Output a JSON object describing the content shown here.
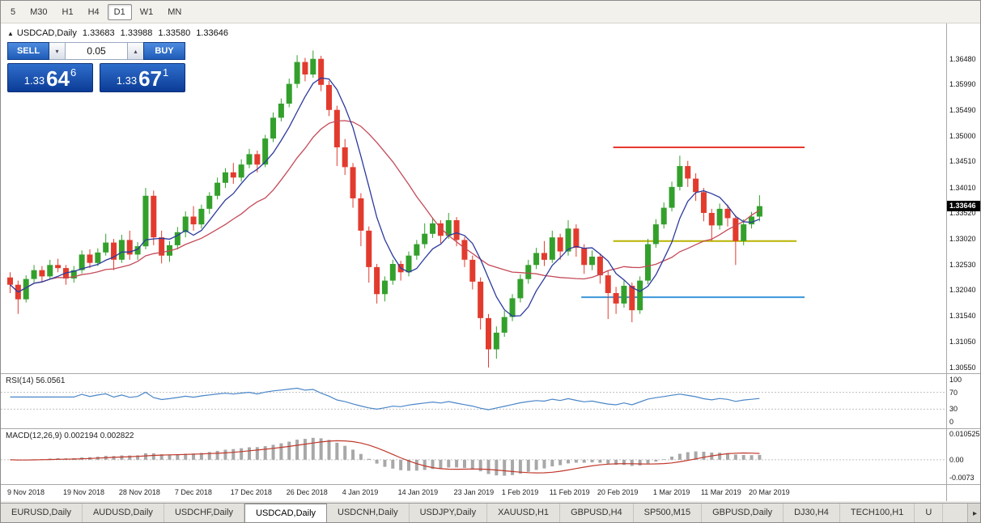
{
  "toolbar": {
    "timeframes": [
      {
        "label": "5",
        "active": false
      },
      {
        "label": "M30",
        "active": false
      },
      {
        "label": "H1",
        "active": false
      },
      {
        "label": "H4",
        "active": false
      },
      {
        "label": "D1",
        "active": true
      },
      {
        "label": "W1",
        "active": false
      },
      {
        "label": "MN",
        "active": false
      }
    ]
  },
  "quote": {
    "symbol": "USDCAD,Daily",
    "open": "1.33683",
    "high": "1.33988",
    "low": "1.33580",
    "close": "1.33646"
  },
  "trade_panel": {
    "sell_label": "SELL",
    "buy_label": "BUY",
    "lot_value": "0.05",
    "sell_price": {
      "prefix": "1.33",
      "big": "64",
      "sup": "6"
    },
    "buy_price": {
      "prefix": "1.33",
      "big": "67",
      "sup": "1"
    }
  },
  "price_axis": {
    "labels": [
      "1.36480",
      "1.35990",
      "1.35490",
      "1.35000",
      "1.34510",
      "1.34010",
      "1.33520",
      "1.33020",
      "1.32530",
      "1.32040",
      "1.31540",
      "1.31050",
      "1.30550"
    ],
    "badge": "1.33646"
  },
  "rsi": {
    "title": "RSI(14) 56.0561",
    "axis": [
      "100",
      "70",
      "30",
      "0"
    ]
  },
  "macd": {
    "title": "MACD(12,26,9) 0.002194 0.002822",
    "axis": [
      "0.010525",
      "0.00",
      "-0.0073"
    ]
  },
  "dates": [
    {
      "i": 0,
      "label": "9 Nov 2018"
    },
    {
      "i": 7,
      "label": "19 Nov 2018"
    },
    {
      "i": 14,
      "label": "28 Nov 2018"
    },
    {
      "i": 21,
      "label": "7 Dec 2018"
    },
    {
      "i": 28,
      "label": "17 Dec 2018"
    },
    {
      "i": 35,
      "label": "26 Dec 2018"
    },
    {
      "i": 42,
      "label": "4 Jan 2019"
    },
    {
      "i": 49,
      "label": "14 Jan 2019"
    },
    {
      "i": 56,
      "label": "23 Jan 2019"
    },
    {
      "i": 62,
      "label": "1 Feb 2019"
    },
    {
      "i": 68,
      "label": "11 Feb 2019"
    },
    {
      "i": 74,
      "label": "20 Feb 2019"
    },
    {
      "i": 81,
      "label": "1 Mar 2019"
    },
    {
      "i": 87,
      "label": "11 Mar 2019"
    },
    {
      "i": 93,
      "label": "20 Mar 2019"
    }
  ],
  "tabs": [
    {
      "label": "EURUSD,Daily",
      "active": false
    },
    {
      "label": "AUDUSD,Daily",
      "active": false
    },
    {
      "label": "USDCHF,Daily",
      "active": false
    },
    {
      "label": "USDCAD,Daily",
      "active": true
    },
    {
      "label": "USDCNH,Daily",
      "active": false
    },
    {
      "label": "USDJPY,Daily",
      "active": false
    },
    {
      "label": "XAUUSD,H1",
      "active": false
    },
    {
      "label": "GBPUSD,H4",
      "active": false
    },
    {
      "label": "SP500,M15",
      "active": false
    },
    {
      "label": "GBPUSD,Daily",
      "active": false
    },
    {
      "label": "DJ30,H4",
      "active": false
    },
    {
      "label": "TECH100,H1",
      "active": false
    },
    {
      "label": "U",
      "active": false
    }
  ],
  "colors": {
    "bull": "#33a02c",
    "bear": "#e23b2e",
    "ma_fast": "#2b3a9e",
    "ma_slow": "#c44a58",
    "rsi_line": "#4a86c8",
    "macd_hist": "#a8a8a8",
    "macd_signal": "#c0392b"
  },
  "chart_data": {
    "type": "candlestick",
    "symbol": "USDCAD",
    "timeframe": "Daily",
    "price_range": [
      1.3044,
      1.3716
    ],
    "candles": [
      [
        1.3228,
        1.3238,
        1.3198,
        1.3214
      ],
      [
        1.3214,
        1.3222,
        1.3158,
        1.3186
      ],
      [
        1.3186,
        1.3232,
        1.318,
        1.3225
      ],
      [
        1.3225,
        1.3252,
        1.3218,
        1.3242
      ],
      [
        1.3242,
        1.325,
        1.322,
        1.323
      ],
      [
        1.323,
        1.3262,
        1.3225,
        1.3252
      ],
      [
        1.3252,
        1.3264,
        1.3238,
        1.3246
      ],
      [
        1.3246,
        1.3252,
        1.3214,
        1.3226
      ],
      [
        1.3226,
        1.325,
        1.3218,
        1.3242
      ],
      [
        1.3242,
        1.328,
        1.3236,
        1.3272
      ],
      [
        1.3272,
        1.3282,
        1.3246,
        1.3256
      ],
      [
        1.3256,
        1.3284,
        1.325,
        1.3276
      ],
      [
        1.3276,
        1.3312,
        1.327,
        1.3295
      ],
      [
        1.3295,
        1.3302,
        1.3242,
        1.3262
      ],
      [
        1.3262,
        1.331,
        1.3256,
        1.33
      ],
      [
        1.33,
        1.3318,
        1.3262,
        1.3272
      ],
      [
        1.3272,
        1.3296,
        1.3262,
        1.3288
      ],
      [
        1.3288,
        1.34,
        1.3282,
        1.3385
      ],
      [
        1.3385,
        1.3395,
        1.329,
        1.3305
      ],
      [
        1.3305,
        1.3318,
        1.3255,
        1.327
      ],
      [
        1.327,
        1.3298,
        1.3258,
        1.329
      ],
      [
        1.329,
        1.3325,
        1.3282,
        1.3315
      ],
      [
        1.3315,
        1.3355,
        1.3305,
        1.3345
      ],
      [
        1.3345,
        1.3365,
        1.3318,
        1.333
      ],
      [
        1.333,
        1.3368,
        1.3322,
        1.336
      ],
      [
        1.336,
        1.3392,
        1.335,
        1.3385
      ],
      [
        1.3385,
        1.342,
        1.3378,
        1.341
      ],
      [
        1.341,
        1.3438,
        1.34,
        1.343
      ],
      [
        1.343,
        1.3448,
        1.3408,
        1.342
      ],
      [
        1.342,
        1.3455,
        1.3412,
        1.3445
      ],
      [
        1.3445,
        1.3475,
        1.3438,
        1.3465
      ],
      [
        1.3465,
        1.3472,
        1.343,
        1.3445
      ],
      [
        1.3445,
        1.3502,
        1.344,
        1.3495
      ],
      [
        1.3495,
        1.3545,
        1.3488,
        1.3535
      ],
      [
        1.3535,
        1.3572,
        1.3528,
        1.3562
      ],
      [
        1.3562,
        1.361,
        1.3555,
        1.36
      ],
      [
        1.36,
        1.3655,
        1.3592,
        1.3642
      ],
      [
        1.3642,
        1.365,
        1.3605,
        1.3618
      ],
      [
        1.3618,
        1.3664,
        1.3612,
        1.3648
      ],
      [
        1.3648,
        1.3654,
        1.3586,
        1.3598
      ],
      [
        1.3598,
        1.3606,
        1.3538,
        1.355
      ],
      [
        1.355,
        1.3558,
        1.3442,
        1.3478
      ],
      [
        1.3478,
        1.3494,
        1.3425,
        1.344
      ],
      [
        1.344,
        1.3448,
        1.3362,
        1.338
      ],
      [
        1.338,
        1.339,
        1.3288,
        1.3318
      ],
      [
        1.3318,
        1.3326,
        1.3218,
        1.3248
      ],
      [
        1.3248,
        1.3254,
        1.3178,
        1.3196
      ],
      [
        1.3196,
        1.323,
        1.3182,
        1.3222
      ],
      [
        1.3222,
        1.3262,
        1.3214,
        1.3254
      ],
      [
        1.3254,
        1.326,
        1.3222,
        1.3238
      ],
      [
        1.3238,
        1.3278,
        1.323,
        1.327
      ],
      [
        1.327,
        1.33,
        1.3262,
        1.3292
      ],
      [
        1.3292,
        1.3332,
        1.3284,
        1.3312
      ],
      [
        1.3312,
        1.3342,
        1.3304,
        1.3332
      ],
      [
        1.3332,
        1.3338,
        1.3294,
        1.3308
      ],
      [
        1.3308,
        1.3352,
        1.3302,
        1.3338
      ],
      [
        1.3338,
        1.3344,
        1.3288,
        1.33
      ],
      [
        1.33,
        1.3306,
        1.3248,
        1.3262
      ],
      [
        1.3262,
        1.327,
        1.3205,
        1.322
      ],
      [
        1.322,
        1.3228,
        1.3128,
        1.315
      ],
      [
        1.315,
        1.3158,
        1.3055,
        1.309
      ],
      [
        1.309,
        1.3134,
        1.3072,
        1.3122
      ],
      [
        1.3122,
        1.3164,
        1.3114,
        1.3152
      ],
      [
        1.3152,
        1.3196,
        1.3144,
        1.3188
      ],
      [
        1.3188,
        1.3234,
        1.318,
        1.3225
      ],
      [
        1.3225,
        1.3262,
        1.3216,
        1.3252
      ],
      [
        1.3252,
        1.3285,
        1.3244,
        1.3275
      ],
      [
        1.3275,
        1.3298,
        1.325,
        1.3262
      ],
      [
        1.3262,
        1.3318,
        1.3256,
        1.3305
      ],
      [
        1.3305,
        1.3312,
        1.3262,
        1.3278
      ],
      [
        1.3278,
        1.3338,
        1.327,
        1.3322
      ],
      [
        1.3322,
        1.333,
        1.3268,
        1.3285
      ],
      [
        1.3285,
        1.3292,
        1.3235,
        1.3252
      ],
      [
        1.3252,
        1.328,
        1.3242,
        1.3268
      ],
      [
        1.3268,
        1.3274,
        1.3216,
        1.3232
      ],
      [
        1.3232,
        1.324,
        1.3148,
        1.3198
      ],
      [
        1.3198,
        1.321,
        1.3158,
        1.3178
      ],
      [
        1.3178,
        1.3222,
        1.317,
        1.3212
      ],
      [
        1.3212,
        1.3218,
        1.3142,
        1.3165
      ],
      [
        1.3165,
        1.323,
        1.3158,
        1.3222
      ],
      [
        1.3222,
        1.3302,
        1.3215,
        1.3292
      ],
      [
        1.3292,
        1.334,
        1.3285,
        1.333
      ],
      [
        1.333,
        1.3372,
        1.3322,
        1.3362
      ],
      [
        1.3362,
        1.3412,
        1.3355,
        1.3402
      ],
      [
        1.3402,
        1.3462,
        1.3395,
        1.3442
      ],
      [
        1.3442,
        1.3452,
        1.3402,
        1.3418
      ],
      [
        1.3418,
        1.3428,
        1.3375,
        1.3392
      ],
      [
        1.3392,
        1.34,
        1.3336,
        1.3352
      ],
      [
        1.3352,
        1.336,
        1.3298,
        1.3328
      ],
      [
        1.3328,
        1.337,
        1.332,
        1.336
      ],
      [
        1.336,
        1.3368,
        1.3326,
        1.3342
      ],
      [
        1.3342,
        1.3348,
        1.3252,
        1.3298
      ],
      [
        1.3298,
        1.334,
        1.329,
        1.333
      ],
      [
        1.333,
        1.3354,
        1.3322,
        1.3345
      ],
      [
        1.3345,
        1.3386,
        1.3336,
        1.3365
      ]
    ],
    "overlays": {
      "fast_ma_period": 6,
      "slow_ma_period": 15
    },
    "hlines": [
      {
        "price": 1.3478,
        "color": "#e8392e",
        "from": 76,
        "to": 100
      },
      {
        "price": 1.3298,
        "color": "#b8b400",
        "from": 76,
        "to": 99
      },
      {
        "price": 1.319,
        "color": "#3a96d8",
        "from": 72,
        "to": 100
      }
    ],
    "indicators": {
      "rsi": {
        "period": 14,
        "value": 56.0561,
        "levels": [
          30,
          70
        ]
      },
      "macd": {
        "fast": 12,
        "slow": 26,
        "signal": 9,
        "value": 0.002194,
        "signal_value": 0.002822,
        "range": [
          -0.0073,
          0.010525
        ]
      }
    }
  }
}
